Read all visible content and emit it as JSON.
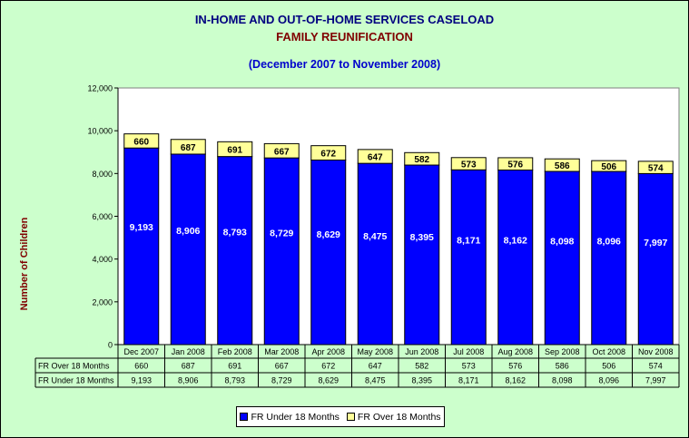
{
  "chart_data": {
    "type": "bar",
    "stacked": true,
    "title": "IN-HOME AND OUT-OF-HOME SERVICES CASELOAD",
    "subtitle": "FAMILY REUNIFICATION",
    "period": "(December 2007 to November 2008)",
    "ylabel": "Number of Children",
    "ylim": [
      0,
      12000
    ],
    "yticks": [
      "0",
      "2,000",
      "4,000",
      "6,000",
      "8,000",
      "10,000",
      "12,000"
    ],
    "grid": false,
    "legend_position": "bottom",
    "categories": [
      "Dec 2007",
      "Jan 2008",
      "Feb 2008",
      "Mar 2008",
      "Apr 2008",
      "May 2008",
      "Jun 2008",
      "Jul 2008",
      "Aug 2008",
      "Sep 2008",
      "Oct 2008",
      "Nov 2008"
    ],
    "series": [
      {
        "name": "FR Under 18 Months",
        "color": "#0000ff",
        "values": [
          9193,
          8906,
          8793,
          8729,
          8629,
          8475,
          8395,
          8171,
          8162,
          8098,
          8096,
          7997
        ],
        "labels": [
          "9,193",
          "8,906",
          "8,793",
          "8,729",
          "8,629",
          "8,475",
          "8,395",
          "8,171",
          "8,162",
          "8,098",
          "8,096",
          "7,997"
        ]
      },
      {
        "name": "FR Over 18 Months",
        "color": "#ffff99",
        "values": [
          660,
          687,
          691,
          667,
          672,
          647,
          582,
          573,
          576,
          586,
          506,
          574
        ],
        "labels": [
          "660",
          "687",
          "691",
          "667",
          "672",
          "647",
          "582",
          "573",
          "576",
          "586",
          "506",
          "574"
        ]
      }
    ],
    "table_rows": [
      "FR Over 18 Months",
      "FR Under 18 Months"
    ]
  }
}
